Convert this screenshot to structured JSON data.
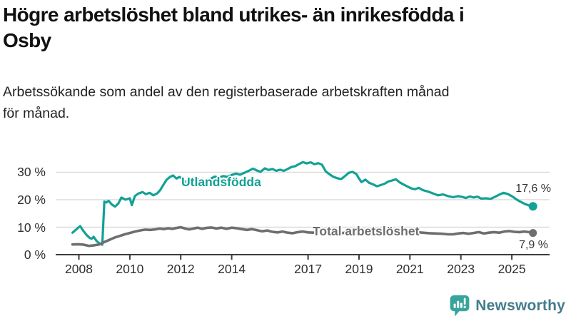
{
  "header": {
    "title": "Högre arbetslöshet bland utrikes- än inrikesfödda i Osby",
    "title_lines": [
      "Högre arbetslöshet bland utrikes- än inrikesfödda i",
      "Osby"
    ],
    "subtitle": "Arbetssökande som andel av den registerbaserade arbetskraften månad för månad.",
    "subtitle_lines": [
      "Arbetssökande som andel av den registerbaserade arbetskraften månad",
      "för månad."
    ]
  },
  "colors": {
    "background": "#ffffff",
    "axis": "#3c3c3c",
    "grid": "#dadada",
    "tick_label": "#2f2f2f",
    "value_label": "#333333",
    "accent_teal": "#12a195",
    "line_gray": "#6e6e6e"
  },
  "branding": {
    "logo_text": "Newsworthy",
    "logo_icon": "bar-chart-speech-bubble",
    "icon_color": "#38a59d",
    "text_color": "#447c8c"
  },
  "chart_data": {
    "type": "line",
    "unit": "%",
    "title": "Högre arbetslöshet bland utrikes- än inrikesfödda i Osby",
    "subtitle": "Arbetssökande som andel av den registerbaserade arbetskraften månad för månad.",
    "xlabel": "",
    "ylabel": "",
    "xlim": [
      2007.5,
      2026.5
    ],
    "ylim": [
      0,
      35
    ],
    "grid": true,
    "legend_position": "on-line-labels",
    "x_ticks": [
      {
        "value": 2008,
        "label": "2008"
      },
      {
        "value": 2010,
        "label": "2010"
      },
      {
        "value": 2012,
        "label": "2012"
      },
      {
        "value": 2014,
        "label": "2014"
      },
      {
        "value": 2017,
        "label": "2017"
      },
      {
        "value": 2019,
        "label": "2019"
      },
      {
        "value": 2021,
        "label": "2021"
      },
      {
        "value": 2023,
        "label": "2023"
      },
      {
        "value": 2025,
        "label": "2025"
      }
    ],
    "y_ticks": [
      {
        "value": 0,
        "label": "0 %"
      },
      {
        "value": 10,
        "label": "10 %"
      },
      {
        "value": 20,
        "label": "20 %"
      },
      {
        "value": 30,
        "label": "30 %"
      }
    ],
    "series": [
      {
        "name": "Utlandsfödda",
        "color": "#12a195",
        "stroke_width": 3.2,
        "end_dot_radius": 6,
        "end_value": 17.6,
        "end_label": "17,6 %",
        "points": [
          [
            2007.75,
            8.0
          ],
          [
            2007.9,
            9.2
          ],
          [
            2008.05,
            10.4
          ],
          [
            2008.17,
            8.7
          ],
          [
            2008.3,
            7.2
          ],
          [
            2008.42,
            6.1
          ],
          [
            2008.5,
            5.8
          ],
          [
            2008.58,
            6.5
          ],
          [
            2008.7,
            4.9
          ],
          [
            2008.83,
            4.0
          ],
          [
            2008.92,
            3.6
          ],
          [
            2009.0,
            19.3
          ],
          [
            2009.08,
            19.0
          ],
          [
            2009.17,
            19.6
          ],
          [
            2009.3,
            18.2
          ],
          [
            2009.42,
            17.5
          ],
          [
            2009.55,
            18.6
          ],
          [
            2009.67,
            20.8
          ],
          [
            2009.83,
            20.0
          ],
          [
            2010.0,
            20.5
          ],
          [
            2010.08,
            18.0
          ],
          [
            2010.2,
            21.3
          ],
          [
            2010.33,
            22.2
          ],
          [
            2010.5,
            22.8
          ],
          [
            2010.63,
            22.0
          ],
          [
            2010.78,
            22.5
          ],
          [
            2010.92,
            21.6
          ],
          [
            2011.08,
            22.3
          ],
          [
            2011.2,
            23.6
          ],
          [
            2011.33,
            25.6
          ],
          [
            2011.45,
            27.3
          ],
          [
            2011.58,
            28.3
          ],
          [
            2011.7,
            28.8
          ],
          [
            2011.83,
            27.7
          ],
          [
            2011.95,
            28.3
          ],
          [
            2012.1,
            27.2
          ],
          [
            2012.25,
            26.3
          ],
          [
            2012.4,
            26.9
          ],
          [
            2012.55,
            26.5
          ],
          [
            2012.7,
            27.3
          ],
          [
            2012.85,
            26.6
          ],
          [
            2013.0,
            27.0
          ],
          [
            2013.17,
            27.6
          ],
          [
            2013.33,
            28.4
          ],
          [
            2013.5,
            28.0
          ],
          [
            2013.67,
            28.6
          ],
          [
            2013.83,
            28.3
          ],
          [
            2014.0,
            29.0
          ],
          [
            2014.17,
            29.5
          ],
          [
            2014.33,
            29.1
          ],
          [
            2014.5,
            29.8
          ],
          [
            2014.67,
            30.5
          ],
          [
            2014.83,
            31.3
          ],
          [
            2015.0,
            30.6
          ],
          [
            2015.13,
            30.1
          ],
          [
            2015.3,
            31.4
          ],
          [
            2015.45,
            30.8
          ],
          [
            2015.6,
            31.2
          ],
          [
            2015.75,
            30.5
          ],
          [
            2015.9,
            30.9
          ],
          [
            2016.05,
            30.5
          ],
          [
            2016.2,
            31.2
          ],
          [
            2016.35,
            31.9
          ],
          [
            2016.5,
            32.2
          ],
          [
            2016.65,
            33.0
          ],
          [
            2016.8,
            33.7
          ],
          [
            2016.95,
            33.2
          ],
          [
            2017.1,
            33.6
          ],
          [
            2017.25,
            32.9
          ],
          [
            2017.4,
            33.3
          ],
          [
            2017.55,
            32.7
          ],
          [
            2017.7,
            30.2
          ],
          [
            2017.85,
            29.2
          ],
          [
            2018.0,
            28.3
          ],
          [
            2018.15,
            27.8
          ],
          [
            2018.3,
            27.5
          ],
          [
            2018.45,
            28.6
          ],
          [
            2018.6,
            29.8
          ],
          [
            2018.75,
            30.1
          ],
          [
            2018.9,
            29.3
          ],
          [
            2019.0,
            27.7
          ],
          [
            2019.1,
            26.4
          ],
          [
            2019.25,
            27.3
          ],
          [
            2019.4,
            26.1
          ],
          [
            2019.55,
            25.6
          ],
          [
            2019.7,
            24.9
          ],
          [
            2019.85,
            25.3
          ],
          [
            2020.0,
            25.8
          ],
          [
            2020.15,
            26.6
          ],
          [
            2020.3,
            27.0
          ],
          [
            2020.45,
            27.4
          ],
          [
            2020.6,
            26.3
          ],
          [
            2020.75,
            25.5
          ],
          [
            2020.9,
            24.8
          ],
          [
            2021.05,
            24.1
          ],
          [
            2021.2,
            23.8
          ],
          [
            2021.35,
            24.3
          ],
          [
            2021.5,
            23.5
          ],
          [
            2021.7,
            23.0
          ],
          [
            2021.9,
            22.3
          ],
          [
            2022.1,
            21.6
          ],
          [
            2022.3,
            21.9
          ],
          [
            2022.5,
            21.3
          ],
          [
            2022.7,
            20.9
          ],
          [
            2022.9,
            21.3
          ],
          [
            2023.05,
            21.0
          ],
          [
            2023.2,
            20.6
          ],
          [
            2023.35,
            21.2
          ],
          [
            2023.5,
            20.8
          ],
          [
            2023.65,
            21.1
          ],
          [
            2023.8,
            20.4
          ],
          [
            2024.0,
            20.5
          ],
          [
            2024.17,
            20.3
          ],
          [
            2024.33,
            21.0
          ],
          [
            2024.5,
            21.8
          ],
          [
            2024.67,
            22.5
          ],
          [
            2024.83,
            22.1
          ],
          [
            2025.0,
            21.3
          ],
          [
            2025.17,
            20.2
          ],
          [
            2025.33,
            19.3
          ],
          [
            2025.5,
            18.5
          ],
          [
            2025.67,
            17.9
          ],
          [
            2025.83,
            17.6
          ]
        ]
      },
      {
        "name": "Total arbetslöshet",
        "color": "#6e6e6e",
        "stroke_width": 3.6,
        "end_dot_radius": 5.5,
        "end_value": 7.9,
        "end_label": "7,9 %",
        "points": [
          [
            2007.75,
            3.7
          ],
          [
            2008.0,
            3.8
          ],
          [
            2008.2,
            3.6
          ],
          [
            2008.4,
            3.2
          ],
          [
            2008.6,
            3.4
          ],
          [
            2008.8,
            3.7
          ],
          [
            2009.0,
            4.6
          ],
          [
            2009.2,
            5.4
          ],
          [
            2009.4,
            6.2
          ],
          [
            2009.6,
            6.8
          ],
          [
            2009.8,
            7.4
          ],
          [
            2010.0,
            7.9
          ],
          [
            2010.2,
            8.4
          ],
          [
            2010.4,
            8.8
          ],
          [
            2010.6,
            9.1
          ],
          [
            2010.8,
            9.0
          ],
          [
            2011.0,
            9.2
          ],
          [
            2011.17,
            9.5
          ],
          [
            2011.33,
            9.3
          ],
          [
            2011.5,
            9.6
          ],
          [
            2011.67,
            9.4
          ],
          [
            2011.83,
            9.7
          ],
          [
            2012.0,
            10.0
          ],
          [
            2012.17,
            9.5
          ],
          [
            2012.33,
            9.2
          ],
          [
            2012.5,
            9.5
          ],
          [
            2012.67,
            9.8
          ],
          [
            2012.83,
            9.4
          ],
          [
            2013.0,
            9.7
          ],
          [
            2013.2,
            9.9
          ],
          [
            2013.4,
            9.5
          ],
          [
            2013.6,
            9.8
          ],
          [
            2013.8,
            9.4
          ],
          [
            2014.0,
            9.8
          ],
          [
            2014.2,
            9.6
          ],
          [
            2014.4,
            9.3
          ],
          [
            2014.6,
            9.0
          ],
          [
            2014.8,
            9.3
          ],
          [
            2015.0,
            8.9
          ],
          [
            2015.2,
            8.5
          ],
          [
            2015.4,
            8.8
          ],
          [
            2015.6,
            8.3
          ],
          [
            2015.8,
            8.1
          ],
          [
            2016.0,
            8.4
          ],
          [
            2016.2,
            8.0
          ],
          [
            2016.4,
            7.8
          ],
          [
            2016.6,
            8.2
          ],
          [
            2016.8,
            8.4
          ],
          [
            2017.0,
            8.1
          ],
          [
            2017.2,
            8.0
          ],
          [
            2017.4,
            8.3
          ],
          [
            2017.6,
            8.0
          ],
          [
            2017.8,
            7.8
          ],
          [
            2018.0,
            8.1
          ],
          [
            2018.25,
            7.8
          ],
          [
            2018.5,
            8.0
          ],
          [
            2018.75,
            7.7
          ],
          [
            2019.0,
            7.6
          ],
          [
            2019.25,
            7.8
          ],
          [
            2019.5,
            7.5
          ],
          [
            2019.75,
            7.4
          ],
          [
            2020.0,
            7.7
          ],
          [
            2020.25,
            8.4
          ],
          [
            2020.5,
            8.8
          ],
          [
            2020.75,
            8.6
          ],
          [
            2021.0,
            8.4
          ],
          [
            2021.25,
            8.2
          ],
          [
            2021.5,
            8.0
          ],
          [
            2021.75,
            7.8
          ],
          [
            2022.0,
            7.7
          ],
          [
            2022.25,
            7.6
          ],
          [
            2022.5,
            7.4
          ],
          [
            2022.7,
            7.4
          ],
          [
            2022.9,
            7.7
          ],
          [
            2023.1,
            7.9
          ],
          [
            2023.3,
            7.6
          ],
          [
            2023.5,
            7.9
          ],
          [
            2023.7,
            8.2
          ],
          [
            2023.9,
            7.7
          ],
          [
            2024.1,
            8.0
          ],
          [
            2024.3,
            8.2
          ],
          [
            2024.5,
            8.0
          ],
          [
            2024.7,
            8.4
          ],
          [
            2024.9,
            8.6
          ],
          [
            2025.1,
            8.3
          ],
          [
            2025.3,
            8.2
          ],
          [
            2025.5,
            8.4
          ],
          [
            2025.67,
            8.2
          ],
          [
            2025.83,
            7.9
          ]
        ]
      }
    ]
  }
}
